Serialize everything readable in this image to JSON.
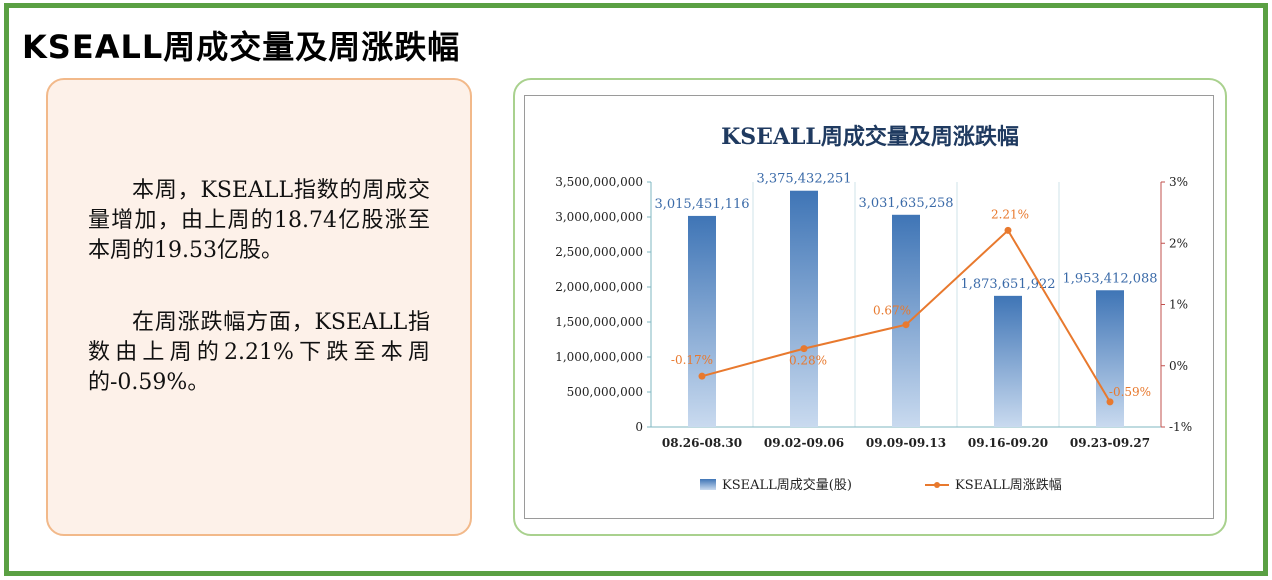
{
  "page": {
    "title": "KSEALL周成交量及周涨跌幅",
    "paragraphs": [
      "本周，KSEALL指数的周成交量增加，由上周的18.74亿股涨至本周的19.53亿股。",
      "在周涨跌幅方面，KSEALL指数由上周的2.21%下跌至本周的-0.59%。"
    ]
  },
  "colors": {
    "frame": "#5aa043",
    "bar_top": "#3f75b6",
    "bar_bottom": "#c9daef",
    "line": "#e8792e",
    "right_axis": "#c0504d"
  },
  "chart_data": {
    "type": "bar",
    "title": "KSEALL周成交量及周涨跌幅",
    "categories": [
      "08.26-08.30",
      "09.02-09.06",
      "09.09-09.13",
      "09.16-09.20",
      "09.23-09.27"
    ],
    "series": [
      {
        "name": "KSEALL周成交量(股)",
        "type": "bar",
        "axis": "left",
        "values": [
          3015451116,
          3375432251,
          3031635258,
          1873651922,
          1953412088
        ],
        "labels": [
          "3,015,451,116",
          "3,375,432,251",
          "3,031,635,258",
          "1,873,651,922",
          "1,953,412,088"
        ]
      },
      {
        "name": "KSEALL周涨跌幅",
        "type": "line",
        "axis": "right",
        "values": [
          -0.17,
          0.28,
          0.67,
          2.21,
          -0.59
        ],
        "labels": [
          "-0.17%",
          "0.28%",
          "0.67%",
          "2.21%",
          "-0.59%"
        ]
      }
    ],
    "left_axis": {
      "ylim": [
        0,
        3500000000
      ],
      "ticks": [
        "0",
        "500,000,000",
        "1,000,000,000",
        "1,500,000,000",
        "2,000,000,000",
        "2,500,000,000",
        "3,000,000,000",
        "3,500,000,000"
      ]
    },
    "right_axis": {
      "ylim": [
        -1,
        3
      ],
      "ticks": [
        "-1%",
        "0%",
        "1%",
        "2%",
        "3%"
      ]
    },
    "legend": "bottom",
    "grid": false
  }
}
